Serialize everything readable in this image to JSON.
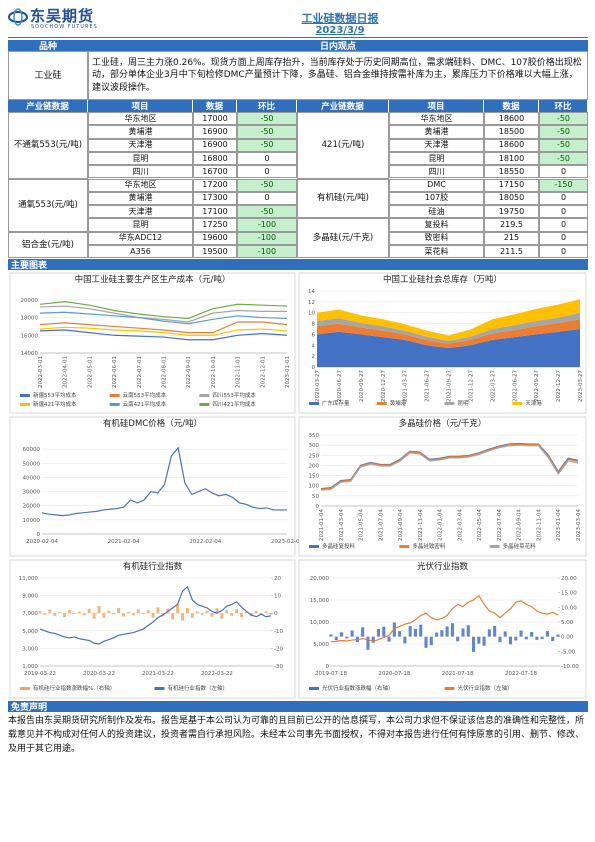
{
  "header": {
    "logo": "东吴期货",
    "logo_en": "SOOCHOW FUTURES",
    "title": "工业硅数据日报",
    "date": "2023/3/9"
  },
  "views": {
    "col1": "品种",
    "col2": "日内观点",
    "name": "工业硅",
    "text": "工业硅，周三主力涨0.26%。现货方面上周库存抬升，当前库存处于历史同期高位，需求端硅料、DMC、107胶价格出现松动，部分单体企业3月中下旬检修DMC产量预计下降，多晶硅、铝合金维持按需补库为主，累库压力下价格难以大幅上涨，建议波段操作。"
  },
  "table": {
    "headers": [
      "产业链数据",
      "项目",
      "数据",
      "环比",
      "产业链数据",
      "项目",
      "数据",
      "环比"
    ],
    "left": [
      {
        "name": "不通氧553(元/吨)",
        "rows": [
          [
            "华东地区",
            17000,
            -50
          ],
          [
            "黄埔港",
            16900,
            -50
          ],
          [
            "天津港",
            16900,
            -50
          ],
          [
            "昆明",
            16800,
            0
          ],
          [
            "四川",
            16700,
            0
          ]
        ]
      },
      {
        "name": "通氧553(元/吨)",
        "rows": [
          [
            "华东地区",
            17200,
            -50
          ],
          [
            "黄埔港",
            17300,
            0
          ],
          [
            "天津港",
            17100,
            -50
          ],
          [
            "昆明",
            17250,
            -100
          ]
        ]
      },
      {
        "name": "铝合金(元/吨)",
        "rows": [
          [
            "华东ADC12",
            19600,
            -100
          ],
          [
            "A356",
            19500,
            -100
          ]
        ]
      }
    ],
    "right": [
      {
        "name": "421(元/吨)",
        "rows": [
          [
            "华东地区",
            18600,
            -50
          ],
          [
            "黄埔港",
            18500,
            -50
          ],
          [
            "天津港",
            18600,
            -50
          ],
          [
            "昆明",
            18100,
            -50
          ],
          [
            "四川",
            18550,
            0
          ]
        ]
      },
      {
        "name": "有机硅(元/吨)",
        "rows": [
          [
            "DMC",
            17150,
            -150
          ],
          [
            "107胶",
            18050,
            0
          ],
          [
            "硅油",
            19750,
            0
          ]
        ]
      },
      {
        "name": "多晶硅(元/千克)",
        "rows": [
          [
            "复投料",
            219.5,
            0
          ],
          [
            "致密料",
            215,
            0
          ],
          [
            "菜花料",
            211.5,
            0
          ]
        ]
      }
    ]
  },
  "charts_heading": "主要图表",
  "charts": [
    {
      "type": "line",
      "title": "中国工业硅主要生产区生产成本（元/吨）",
      "categories": [
        "2022-03-01",
        "2022-04-01",
        "2022-05-01",
        "2022-06-01",
        "2022-07-01",
        "2022-08-01",
        "2022-09-01",
        "2022-10-01",
        "2022-11-01",
        "2022-12-01",
        "2023-01-01"
      ],
      "ylim": [
        14000,
        21000
      ],
      "yticks": [
        14000,
        16000,
        18000,
        20000
      ],
      "series": [
        {
          "name": "新疆553平均成本",
          "color": "#4472c4",
          "values": [
            16500,
            16600,
            16300,
            16000,
            15900,
            15800,
            15500,
            15500,
            16000,
            16200,
            16000
          ]
        },
        {
          "name": "云南553平均成本",
          "color": "#ed7d31",
          "values": [
            17200,
            17400,
            17200,
            17000,
            16800,
            16600,
            16300,
            16300,
            17500,
            17500,
            17200
          ]
        },
        {
          "name": "四川553平均成本",
          "color": "#a5a5a5",
          "values": [
            19200,
            19300,
            19000,
            18500,
            18000,
            17800,
            17500,
            18500,
            18800,
            18700,
            18700
          ]
        },
        {
          "name": "新疆421平均成本",
          "color": "#ffc000",
          "values": [
            16700,
            16900,
            16800,
            16600,
            16500,
            16300,
            16000,
            16000,
            16600,
            16700,
            16500
          ]
        },
        {
          "name": "云南421平均成本",
          "color": "#5b9bd5",
          "values": [
            18500,
            18600,
            18400,
            18200,
            18000,
            17600,
            17300,
            17800,
            18200,
            18000,
            17900
          ]
        },
        {
          "name": "四川421平均成本",
          "color": "#70ad47",
          "values": [
            19500,
            19800,
            19400,
            18800,
            18400,
            18100,
            17900,
            19000,
            19500,
            19400,
            19300
          ]
        }
      ]
    },
    {
      "type": "area",
      "stacked": true,
      "title": "中国工业硅社会总库存（万吨）",
      "categories": [
        "2020-03-27",
        "2020-06-27",
        "2020-09-27",
        "2020-12-27",
        "2021-03-27",
        "2021-06-27",
        "2021-09-27",
        "2021-12-27",
        "2022-03-27",
        "2022-06-27",
        "2022-09-27",
        "2022-12-27",
        "2023-03-27"
      ],
      "ylim": [
        0,
        14
      ],
      "yticks": [
        0,
        2,
        4,
        6,
        8,
        10,
        12,
        14
      ],
      "series": [
        {
          "name": "广东库存量",
          "color": "#4472c4",
          "values": [
            6,
            6.5,
            6,
            5.5,
            5,
            4,
            3.5,
            4,
            5,
            5.5,
            6,
            6.5,
            7
          ]
        },
        {
          "name": "黄埔港",
          "color": "#ed7d31",
          "values": [
            1.5,
            1.5,
            1.3,
            1.2,
            1,
            1,
            0.8,
            1,
            1.2,
            1.3,
            1.5,
            1.6,
            1.8
          ]
        },
        {
          "name": "昆明",
          "color": "#a5a5a5",
          "values": [
            1,
            1,
            0.8,
            0.8,
            0.7,
            0.6,
            0.5,
            0.6,
            0.8,
            0.9,
            1,
            1,
            1.2
          ]
        },
        {
          "name": "天津港",
          "color": "#ffc000",
          "values": [
            1.5,
            1.6,
            1.4,
            1.3,
            1.2,
            1.1,
            1,
            1.3,
            1.8,
            2,
            2.2,
            2.4,
            2.5
          ]
        }
      ]
    },
    {
      "type": "line",
      "title": "有机硅DMC价格（元/吨）",
      "categories": [
        "2020-02-04",
        null,
        null,
        null,
        null,
        null,
        null,
        null,
        null,
        null,
        null,
        null,
        "2021-02-04",
        null,
        null,
        null,
        null,
        null,
        null,
        null,
        null,
        null,
        null,
        null,
        "2022-02-04",
        null,
        null,
        null,
        null,
        null,
        null,
        null,
        null,
        null,
        null,
        null,
        "2023-02-04"
      ],
      "ylim": [
        0,
        70000
      ],
      "yticks": [
        0,
        10000,
        20000,
        30000,
        40000,
        50000,
        60000
      ],
      "series": [
        {
          "color": "#4472c4",
          "values": [
            15000,
            14000,
            13500,
            13000,
            13500,
            14500,
            15000,
            15500,
            16000,
            17000,
            17500,
            18000,
            19000,
            24000,
            22000,
            24000,
            30000,
            29000,
            35000,
            55000,
            61000,
            36000,
            28000,
            30000,
            32000,
            29000,
            27000,
            28000,
            26000,
            22000,
            21000,
            19000,
            18000,
            18500,
            17000,
            17000,
            17000
          ]
        }
      ]
    },
    {
      "type": "line",
      "title": "多晶硅价格（元/千克）",
      "categories": [
        "2021-01-04",
        null,
        "2021-03-04",
        null,
        "2021-05-04",
        null,
        "2021-07-04",
        null,
        "2021-09-04",
        null,
        "2021-11-04",
        null,
        "2022-01-04",
        null,
        "2022-03-04",
        null,
        "2022-05-04",
        null,
        "2022-07-04",
        null,
        "2022-09-04",
        null,
        "2022-11-04",
        null,
        "2023-01-04",
        null,
        "2023-03-04"
      ],
      "ylim": [
        0,
        350
      ],
      "yticks": [
        0,
        50,
        100,
        150,
        200,
        250,
        300,
        350
      ],
      "series": [
        {
          "name": "多晶硅复投料",
          "color": "#4472c4",
          "values": [
            86,
            90,
            125,
            130,
            200,
            215,
            205,
            205,
            230,
            270,
            265,
            230,
            235,
            245,
            245,
            250,
            262,
            280,
            295,
            305,
            308,
            305,
            305,
            250,
            170,
            235,
            225
          ]
        },
        {
          "name": "多晶硅致密料",
          "color": "#ed7d31",
          "values": [
            83,
            87,
            122,
            127,
            197,
            212,
            202,
            202,
            227,
            267,
            262,
            227,
            232,
            242,
            242,
            247,
            259,
            277,
            292,
            302,
            305,
            302,
            302,
            245,
            165,
            230,
            220
          ]
        },
        {
          "name": "多晶硅菜花料",
          "color": "#a5a5a5",
          "values": [
            78,
            82,
            117,
            122,
            192,
            207,
            197,
            197,
            222,
            262,
            257,
            222,
            227,
            237,
            237,
            242,
            254,
            272,
            287,
            297,
            300,
            297,
            297,
            238,
            158,
            222,
            212
          ]
        }
      ]
    },
    {
      "type": "combo",
      "title": "有机硅行业指数",
      "categories": [
        "2019-03-22",
        null,
        null,
        null,
        null,
        null,
        null,
        null,
        null,
        null,
        null,
        null,
        "2020-03-22",
        null,
        null,
        null,
        null,
        null,
        null,
        null,
        null,
        null,
        null,
        null,
        "2021-03-22",
        null,
        null,
        null,
        null,
        null,
        null,
        null,
        null,
        null,
        null,
        null,
        "2022-03-22",
        null,
        null,
        null,
        null,
        null,
        null,
        null,
        null,
        null,
        null,
        null
      ],
      "ylim": [
        1000,
        11000
      ],
      "yticks": [
        {
          "value": 1000,
          "label": "1,000"
        },
        {
          "value": 3000,
          "label": "3,000"
        },
        {
          "value": 5000,
          "label": "5,000"
        },
        {
          "value": 7000,
          "label": "7,000"
        },
        {
          "value": 9000,
          "label": "9,000"
        },
        {
          "value": 11000,
          "label": "11,000"
        }
      ],
      "y2lim": [
        -30,
        20
      ],
      "y2ticks": [
        20,
        10,
        0,
        -10,
        -20,
        -30
      ],
      "series": [
        {
          "name": "有机硅行业指数涨跌幅%（右轴）",
          "type": "bar",
          "axis": "y2",
          "color": "#f4a460",
          "values": [
            1.2,
            -0.8,
            2.1,
            -1.5,
            0.6,
            -2.3,
            1.8,
            -0.4,
            0.9,
            -1.1,
            2.5,
            -3.2,
            4.1,
            -2.6,
            1.4,
            -0.7,
            3,
            -1.9,
            0.8,
            -1.2,
            2.2,
            -0.6,
            1.7,
            -2.4,
            3.3,
            -1.8,
            2.6,
            -3.5,
            5.2,
            -4.1,
            2.9,
            -2.7,
            1.1,
            -0.9,
            1.5,
            -2,
            2.8,
            -3.1,
            1.9,
            -1.4,
            2.4,
            -2.2,
            0.7,
            -1.6,
            1.3,
            -0.5,
            0.9,
            -0.8
          ]
        },
        {
          "name": "有机硅行业指数（左轴）",
          "type": "line",
          "color": "#4472c4",
          "values": [
            5200,
            5000,
            4800,
            4700,
            4500,
            4300,
            4200,
            4300,
            4100,
            4000,
            3900,
            3600,
            3500,
            3800,
            4000,
            4200,
            4500,
            4600,
            4700,
            4800,
            5000,
            5200,
            5600,
            6000,
            6500,
            6800,
            7200,
            7600,
            8000,
            9500,
            10000,
            8500,
            8000,
            7800,
            7600,
            7200,
            7000,
            7300,
            7800,
            8000,
            8300,
            7700,
            7200,
            6800,
            6600,
            6900,
            6600,
            6700
          ]
        }
      ]
    },
    {
      "type": "combo",
      "title": "光伏行业指数",
      "categories": [
        "2019-07-18",
        null,
        null,
        null,
        null,
        null,
        null,
        null,
        null,
        null,
        null,
        null,
        "2020-07-18",
        null,
        null,
        null,
        null,
        null,
        null,
        null,
        null,
        null,
        null,
        null,
        "2021-07-18",
        null,
        null,
        null,
        null,
        null,
        null,
        null,
        null,
        null,
        null,
        null,
        "2022-07-18",
        null,
        null,
        null,
        null,
        null,
        null,
        null
      ],
      "ylim": [
        0,
        20000
      ],
      "yticks": [
        0,
        {
          "value": 5000,
          "label": "5,000"
        },
        {
          "value": 10000,
          "label": "10,000"
        },
        {
          "value": 15000,
          "label": "15,000"
        },
        {
          "value": 20000,
          "label": "20,000"
        }
      ],
      "y2lim": [
        -10,
        20
      ],
      "y2ticks": [
        {
          "value": 20,
          "label": "20.00"
        },
        {
          "value": 15,
          "label": "15.00"
        },
        {
          "value": 10,
          "label": "10.00"
        },
        {
          "value": 5,
          "label": "5.00"
        },
        {
          "value": 0,
          "label": "0.00"
        },
        {
          "value": -5,
          "label": "-5.00"
        },
        {
          "value": -10,
          "label": "-10.00"
        }
      ],
      "series": [
        {
          "name": "光伏行业指数涨跌幅（右轴）",
          "type": "bar",
          "axis": "y2",
          "color": "#4472c4",
          "values": [
            0.8,
            -1.2,
            1.5,
            -0.6,
            2.1,
            -1.8,
            3.2,
            -4.5,
            -2.1,
            2.6,
            3.4,
            -1.7,
            4.8,
            1.9,
            -2.3,
            3.6,
            2.7,
            4.1,
            -3.8,
            -2.9,
            1.4,
            2.2,
            3.5,
            4.6,
            -1.6,
            2.8,
            3.9,
            -5.2,
            -2.4,
            -3.1,
            2.5,
            3.7,
            -1.9,
            1.8,
            -2.6,
            -1.3,
            2.1,
            -0.9,
            1.6,
            -1.1,
            -0.8,
            1.9,
            -1.5,
            0.7
          ]
        },
        {
          "name": "光伏行业指数（左轴）",
          "type": "line",
          "color": "#ed7d31",
          "values": [
            5500,
            5600,
            5800,
            5700,
            5900,
            6000,
            6200,
            6000,
            5600,
            6000,
            6500,
            7000,
            8500,
            9000,
            9500,
            9800,
            10500,
            11500,
            12000,
            11000,
            10500,
            10800,
            11500,
            13000,
            14000,
            13500,
            14500,
            15000,
            16000,
            14000,
            12500,
            12000,
            11000,
            12000,
            13000,
            14500,
            14800,
            14000,
            13500,
            12500,
            12000,
            11800,
            12200,
            11600
          ]
        }
      ]
    }
  ],
  "disclaimer": {
    "heading": "免责声明",
    "text": "本报告由东吴期货研究所制作及发布。报告是基于本公司认为可靠的且目前已公开的信息撰写，本公司力求但不保证该信息的准确性和完整性，所载意见并不构成对任何人的投资建议，投资者需自行承担风险。未经本公司事先书面授权，不得对本报告进行任何有悖原意的引用、删节、修改、及用于其它用途。"
  }
}
